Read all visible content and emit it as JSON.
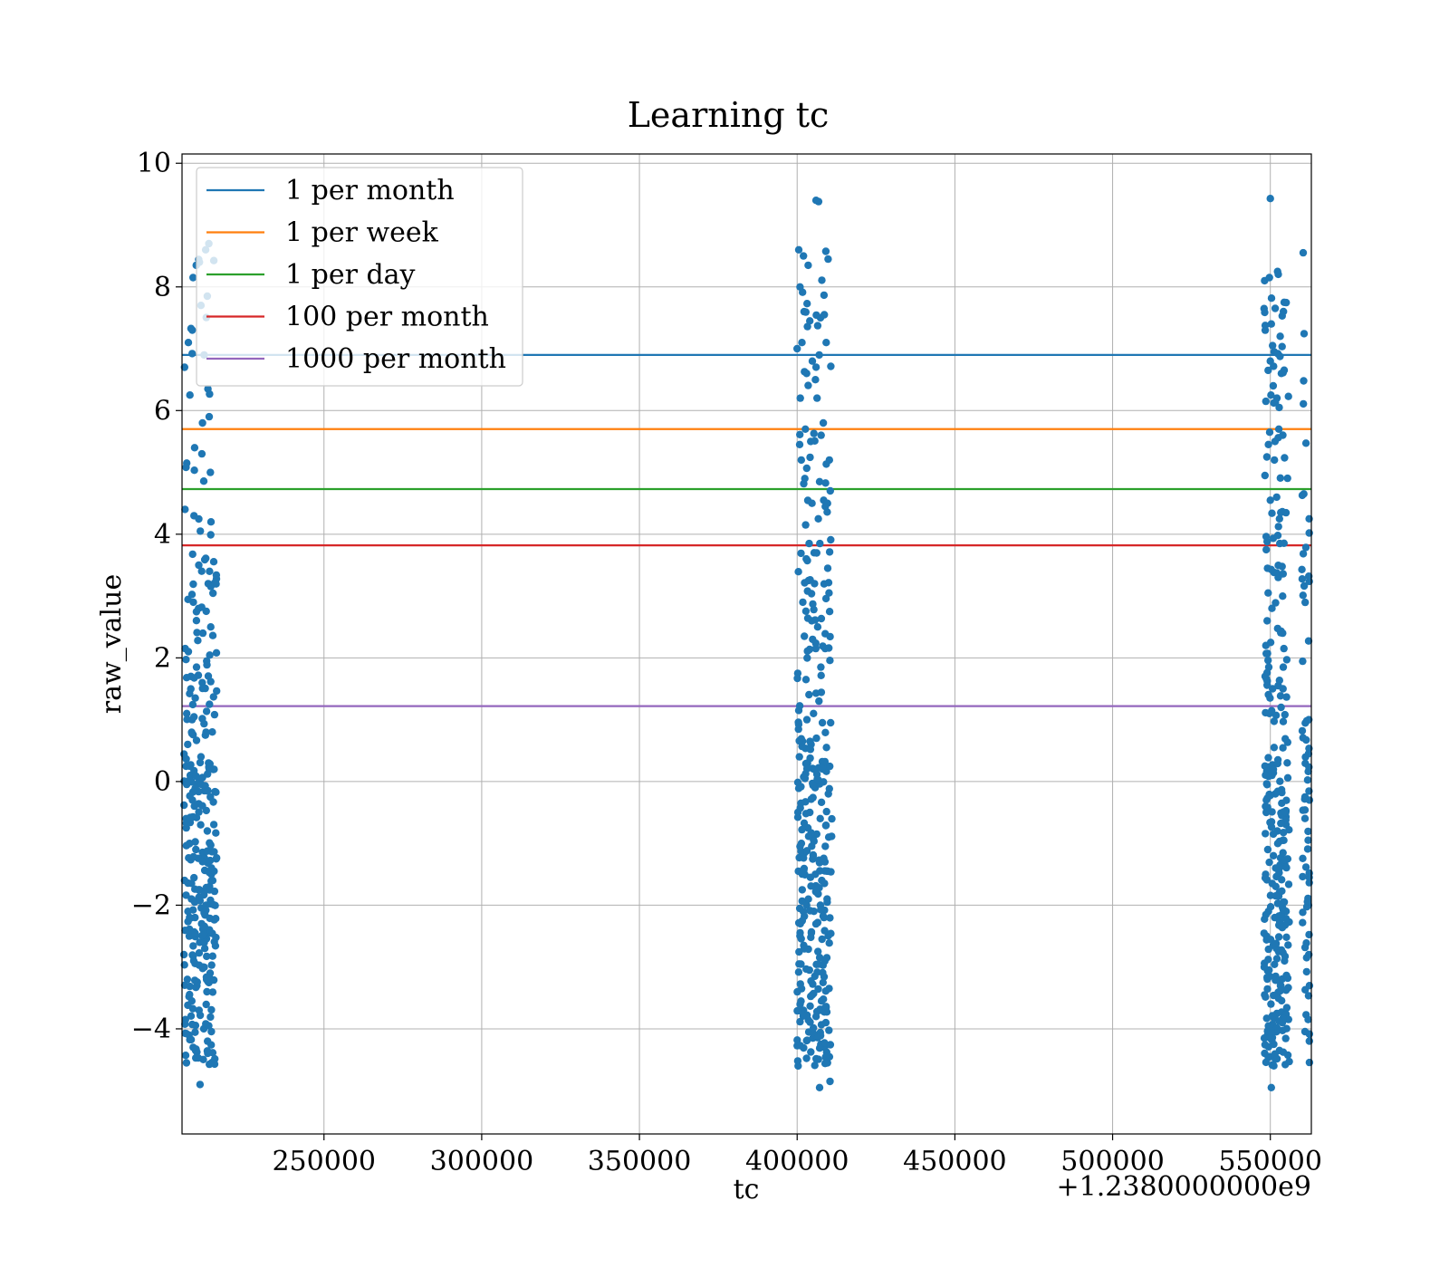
{
  "chart_data": {
    "type": "scatter",
    "title": "Learning tc",
    "xlabel": "tc",
    "ylabel": "raw_value",
    "x_offset_label": "+1.2380000000e9",
    "xlim": [
      1238205000,
      1238563000
    ],
    "ylim": [
      -5.7,
      10.15
    ],
    "x_ticks": [
      1238250000,
      1238300000,
      1238350000,
      1238400000,
      1238450000,
      1238500000,
      1238550000
    ],
    "x_tick_labels": [
      "250000",
      "300000",
      "350000",
      "400000",
      "450000",
      "500000",
      "550000"
    ],
    "y_ticks": [
      -4,
      -2,
      0,
      2,
      4,
      6,
      8,
      10
    ],
    "y_tick_labels": [
      "−4",
      "−2",
      "0",
      "2",
      "4",
      "6",
      "8",
      "10"
    ],
    "grid": true,
    "legend_position": "top-left",
    "scatter_color": "#1f77b4",
    "lines": [
      {
        "name": "1 per month",
        "y": 6.9,
        "color": "#1f77b4"
      },
      {
        "name": "1 per week",
        "y": 5.7,
        "color": "#ff7f0e"
      },
      {
        "name": "1 per day",
        "y": 4.73,
        "color": "#2ca02c"
      },
      {
        "name": "100 per month",
        "y": 3.82,
        "color": "#d62728"
      },
      {
        "name": "1000 per month",
        "y": 1.22,
        "color": "#9467bd"
      }
    ],
    "clusters": [
      {
        "x_min": 1238205000,
        "x_max": 1238216000,
        "count": 260
      },
      {
        "x_min": 1238400000,
        "x_max": 1238411000,
        "count": 240
      },
      {
        "x_min": 1238548000,
        "x_max": 1238556000,
        "count": 220
      },
      {
        "x_min": 1238560000,
        "x_max": 1238563000,
        "count": 70
      }
    ],
    "points": [
      [
        1238205800,
        6.7
      ],
      [
        1238207000,
        7.1
      ],
      [
        1238208500,
        8.15
      ],
      [
        1238209500,
        8.35
      ],
      [
        1238210500,
        8.4
      ],
      [
        1238212500,
        8.6
      ],
      [
        1238213500,
        8.7
      ],
      [
        1238207500,
        6.25
      ],
      [
        1238211000,
        7.7
      ],
      [
        1238213000,
        7.85
      ],
      [
        1238212000,
        6.9
      ],
      [
        1238213200,
        6.35
      ],
      [
        1238206500,
        5.15
      ],
      [
        1238209000,
        5.4
      ],
      [
        1238211500,
        5.8
      ],
      [
        1238213600,
        5.9
      ],
      [
        1238211300,
        5.3
      ],
      [
        1238214000,
        5.0
      ],
      [
        1238208800,
        4.3
      ],
      [
        1238210800,
        4.05
      ],
      [
        1238214200,
        4.2
      ],
      [
        1238205300,
        3.77
      ],
      [
        1238210300,
        3.5
      ],
      [
        1238213300,
        3.2
      ],
      [
        1238208600,
        2.9
      ],
      [
        1238214100,
        2.5
      ],
      [
        1238211600,
        2.4
      ],
      [
        1238210000,
        2.28
      ],
      [
        1238206000,
        2.15
      ],
      [
        1238207000,
        2.1
      ],
      [
        1238212800,
        1.95
      ],
      [
        1238209600,
        1.85
      ],
      [
        1238207800,
        1.7
      ],
      [
        1238211400,
        1.6
      ],
      [
        1238209200,
        1.35
      ],
      [
        1238213700,
        1.25
      ],
      [
        1238206500,
        1.1
      ],
      [
        1238208200,
        1.0
      ],
      [
        1238212400,
        0.75
      ],
      [
        1238206800,
        0.6
      ],
      [
        1238211000,
        0.4
      ],
      [
        1238213400,
        0.3
      ],
      [
        1238207600,
        0.1
      ],
      [
        1238209800,
        -0.05
      ],
      [
        1238212100,
        -0.15
      ],
      [
        1238214000,
        -0.25
      ],
      [
        1238208300,
        -0.3
      ],
      [
        1238206300,
        -0.6
      ],
      [
        1238210900,
        -0.7
      ],
      [
        1238213000,
        -0.8
      ],
      [
        1238207400,
        -1.0
      ],
      [
        1238209400,
        -1.1
      ],
      [
        1238211800,
        -1.2
      ],
      [
        1238214300,
        -1.5
      ],
      [
        1238205800,
        -1.6
      ],
      [
        1238210200,
        -1.75
      ],
      [
        1238208000,
        -1.9
      ],
      [
        1238212600,
        -2.0
      ],
      [
        1238206900,
        -2.1
      ],
      [
        1238209100,
        -2.2
      ],
      [
        1238211200,
        -2.3
      ],
      [
        1238213700,
        -2.4
      ],
      [
        1238207300,
        -2.5
      ],
      [
        1238210600,
        -2.6
      ],
      [
        1238212200,
        -2.7
      ],
      [
        1238205600,
        -2.8
      ],
      [
        1238208700,
        -2.9
      ],
      [
        1238211700,
        -3.0
      ],
      [
        1238213900,
        -3.1
      ],
      [
        1238206700,
        -3.2
      ],
      [
        1238209700,
        -3.3
      ],
      [
        1238212900,
        -3.4
      ],
      [
        1238208100,
        -3.55
      ],
      [
        1238210400,
        -3.7
      ],
      [
        1238206100,
        -3.85
      ],
      [
        1238211900,
        -4.0
      ],
      [
        1238207200,
        -4.1
      ],
      [
        1238213100,
        -4.2
      ],
      [
        1238209300,
        -4.35
      ],
      [
        1238214400,
        -4.55
      ],
      [
        1238206400,
        -4.55
      ],
      [
        1238210700,
        -4.9
      ],
      [
        1238400500,
        8.6
      ],
      [
        1238402000,
        8.5
      ],
      [
        1238403500,
        8.35
      ],
      [
        1238406000,
        9.4
      ],
      [
        1238406800,
        9.38
      ],
      [
        1238409800,
        8.45
      ],
      [
        1238400900,
        8.0
      ],
      [
        1238402200,
        7.6
      ],
      [
        1238404000,
        7.45
      ],
      [
        1238407400,
        7.5
      ],
      [
        1238408600,
        7.55
      ],
      [
        1238400000,
        7.0
      ],
      [
        1238401500,
        7.1
      ],
      [
        1238404800,
        6.8
      ],
      [
        1238407000,
        6.9
      ],
      [
        1238409200,
        7.1
      ],
      [
        1238403000,
        6.6
      ],
      [
        1238405800,
        6.5
      ],
      [
        1238401000,
        6.2
      ],
      [
        1238406300,
        6.2
      ],
      [
        1238408300,
        5.8
      ],
      [
        1238402600,
        5.7
      ],
      [
        1238400800,
        5.45
      ],
      [
        1238404300,
        5.5
      ],
      [
        1238407600,
        5.6
      ],
      [
        1238401300,
        5.2
      ],
      [
        1238410200,
        5.2
      ],
      [
        1238407100,
        4.85
      ],
      [
        1238410500,
        4.7
      ],
      [
        1238404700,
        4.5
      ],
      [
        1238408400,
        4.55
      ],
      [
        1238409600,
        4.5
      ],
      [
        1238402700,
        4.15
      ],
      [
        1238406700,
        4.25
      ],
      [
        1238403800,
        3.85
      ],
      [
        1238405400,
        3.7
      ],
      [
        1238407200,
        3.85
      ],
      [
        1238402900,
        3.6
      ],
      [
        1238409700,
        3.45
      ],
      [
        1238403600,
        3.25
      ],
      [
        1238405500,
        3.2
      ],
      [
        1238410100,
        3.05
      ],
      [
        1238401800,
        2.9
      ],
      [
        1238404600,
        2.6
      ],
      [
        1238406500,
        2.5
      ],
      [
        1238410300,
        2.75
      ],
      [
        1238402300,
        2.35
      ],
      [
        1238404900,
        2.3
      ],
      [
        1238405900,
        2.15
      ],
      [
        1238408900,
        2.15
      ],
      [
        1238400200,
        1.75
      ],
      [
        1238402800,
        1.65
      ],
      [
        1238407500,
        1.85
      ],
      [
        1238406900,
        1.3
      ],
      [
        1238400500,
        1.15
      ],
      [
        1238403100,
        1.0
      ],
      [
        1238405200,
        1.1
      ],
      [
        1238408000,
        0.95
      ],
      [
        1238410600,
        0.95
      ],
      [
        1238401700,
        0.65
      ],
      [
        1238404400,
        0.6
      ],
      [
        1238406100,
        0.7
      ],
      [
        1238409300,
        0.55
      ],
      [
        1238400700,
        0.4
      ],
      [
        1238403300,
        0.3
      ],
      [
        1238408100,
        0.2
      ],
      [
        1238402500,
        0.05
      ],
      [
        1238405700,
        -0.1
      ],
      [
        1238409900,
        -0.2
      ],
      [
        1238401200,
        -0.35
      ],
      [
        1238404000,
        -0.5
      ],
      [
        1238407300,
        -0.6
      ],
      [
        1238403400,
        -0.75
      ],
      [
        1238406200,
        -0.85
      ],
      [
        1238410000,
        -0.9
      ],
      [
        1238400900,
        -1.05
      ],
      [
        1238402400,
        -1.15
      ],
      [
        1238405100,
        -1.2
      ],
      [
        1238408800,
        -1.3
      ],
      [
        1238400400,
        -1.45
      ],
      [
        1238404200,
        -1.55
      ],
      [
        1238407800,
        -1.6
      ],
      [
        1238401600,
        -1.75
      ],
      [
        1238406400,
        -1.8
      ],
      [
        1238409500,
        -1.9
      ],
      [
        1238403000,
        -2.0
      ],
      [
        1238405300,
        -2.1
      ],
      [
        1238408500,
        -2.2
      ],
      [
        1238401000,
        -2.3
      ],
      [
        1238404500,
        -2.45
      ],
      [
        1238407900,
        -2.55
      ],
      [
        1238402100,
        -2.65
      ],
      [
        1238406600,
        -2.75
      ],
      [
        1238409400,
        -2.85
      ],
      [
        1238400600,
        -2.95
      ],
      [
        1238403900,
        -3.05
      ],
      [
        1238405600,
        -3.15
      ],
      [
        1238408200,
        -3.25
      ],
      [
        1238401400,
        -3.35
      ],
      [
        1238404800,
        -3.45
      ],
      [
        1238407700,
        -3.55
      ],
      [
        1238402000,
        -3.7
      ],
      [
        1238406000,
        -3.8
      ],
      [
        1238409100,
        -3.9
      ],
      [
        1238403700,
        -4.05
      ],
      [
        1238405000,
        -4.15
      ],
      [
        1238408700,
        -4.3
      ],
      [
        1238400300,
        -4.6
      ],
      [
        1238409600,
        -4.55
      ],
      [
        1238407100,
        -4.95
      ],
      [
        1238410400,
        -4.85
      ],
      [
        1238550000,
        9.43
      ],
      [
        1238548200,
        8.1
      ],
      [
        1238549700,
        8.15
      ],
      [
        1238552300,
        8.25
      ],
      [
        1238554400,
        7.75
      ],
      [
        1238548000,
        7.65
      ],
      [
        1238550300,
        7.4
      ],
      [
        1238548400,
        7.3
      ],
      [
        1238550700,
        7.05
      ],
      [
        1238551200,
        6.95
      ],
      [
        1238550000,
        6.8
      ],
      [
        1238549300,
        6.65
      ],
      [
        1238553500,
        6.6
      ],
      [
        1238550900,
        6.4
      ],
      [
        1238548600,
        6.15
      ],
      [
        1238550200,
        6.25
      ],
      [
        1238552100,
        6.2
      ],
      [
        1238552800,
        6.05
      ],
      [
        1238549800,
        5.65
      ],
      [
        1238552700,
        5.7
      ],
      [
        1238549400,
        5.45
      ],
      [
        1238551500,
        5.5
      ],
      [
        1238548900,
        5.25
      ],
      [
        1238551300,
        5.2
      ],
      [
        1238548300,
        4.95
      ],
      [
        1238550000,
        4.55
      ],
      [
        1238552000,
        4.6
      ],
      [
        1238553300,
        4.35
      ],
      [
        1238552900,
        4.25
      ],
      [
        1238548700,
        3.75
      ],
      [
        1238553000,
        3.85
      ],
      [
        1238549100,
        3.45
      ],
      [
        1238552500,
        3.3
      ],
      [
        1238549300,
        3.05
      ],
      [
        1238550500,
        2.8
      ],
      [
        1238549000,
        2.6
      ],
      [
        1238548600,
        2.2
      ],
      [
        1238550100,
        2.25
      ],
      [
        1238553900,
        2.4
      ],
      [
        1238554300,
        2.15
      ],
      [
        1238549500,
        1.85
      ],
      [
        1238554100,
        1.85
      ],
      [
        1238550700,
        1.5
      ],
      [
        1238552500,
        1.55
      ],
      [
        1238554000,
        1.5
      ],
      [
        1238549900,
        1.35
      ],
      [
        1238553400,
        1.2
      ],
      [
        1238549700,
        1.1
      ],
      [
        1238551200,
        0.55
      ],
      [
        1238548300,
        0.25
      ],
      [
        1238550500,
        0.1
      ],
      [
        1238552400,
        0.35
      ],
      [
        1238549000,
        -0.05
      ],
      [
        1238551600,
        -0.2
      ],
      [
        1238553600,
        -0.35
      ],
      [
        1238548700,
        -0.5
      ],
      [
        1238550400,
        -0.65
      ],
      [
        1238552200,
        -0.8
      ],
      [
        1238554000,
        -0.95
      ],
      [
        1238549200,
        -1.1
      ],
      [
        1238551000,
        -1.2
      ],
      [
        1238553100,
        -1.35
      ],
      [
        1238548500,
        -1.5
      ],
      [
        1238550600,
        -1.65
      ],
      [
        1238552800,
        -1.8
      ],
      [
        1238554200,
        -1.95
      ],
      [
        1238549400,
        -2.1
      ],
      [
        1238551400,
        -2.2
      ],
      [
        1238553700,
        -2.35
      ],
      [
        1238548800,
        -2.5
      ],
      [
        1238550900,
        -2.65
      ],
      [
        1238552600,
        -2.75
      ],
      [
        1238554500,
        -2.9
      ],
      [
        1238549600,
        -3.05
      ],
      [
        1238551700,
        -3.15
      ],
      [
        1238553200,
        -3.3
      ],
      [
        1238548200,
        -3.45
      ],
      [
        1238550200,
        -3.6
      ],
      [
        1238552100,
        -3.75
      ],
      [
        1238553800,
        -3.9
      ],
      [
        1238549100,
        -4.1
      ],
      [
        1238551100,
        -4.25
      ],
      [
        1238552900,
        -4.35
      ],
      [
        1238549800,
        -4.45
      ],
      [
        1238548100,
        -4.15
      ],
      [
        1238550300,
        -4.95
      ],
      [
        1238562800,
        6.15
      ],
      [
        1238562600,
        5.85
      ],
      [
        1238562300,
        4.25
      ],
      [
        1238562700,
        2.45
      ],
      [
        1238562500,
        2.25
      ],
      [
        1238562200,
        1.0
      ],
      [
        1238562900,
        0.95
      ],
      [
        1238562100,
        0.45
      ],
      [
        1238562400,
        -0.3
      ],
      [
        1238562700,
        -0.55
      ],
      [
        1238562000,
        -0.95
      ],
      [
        1238562600,
        -1.3
      ],
      [
        1238562300,
        -1.55
      ],
      [
        1238562800,
        -1.75
      ],
      [
        1238562100,
        -2.0
      ],
      [
        1238562500,
        -2.25
      ],
      [
        1238562900,
        -2.55
      ],
      [
        1238562200,
        -2.8
      ],
      [
        1238562600,
        -3.05
      ],
      [
        1238562400,
        -3.3
      ],
      [
        1238562800,
        -3.6
      ],
      [
        1238562000,
        -3.85
      ],
      [
        1238562500,
        -4.1
      ],
      [
        1238562700,
        -4.4
      ]
    ]
  }
}
